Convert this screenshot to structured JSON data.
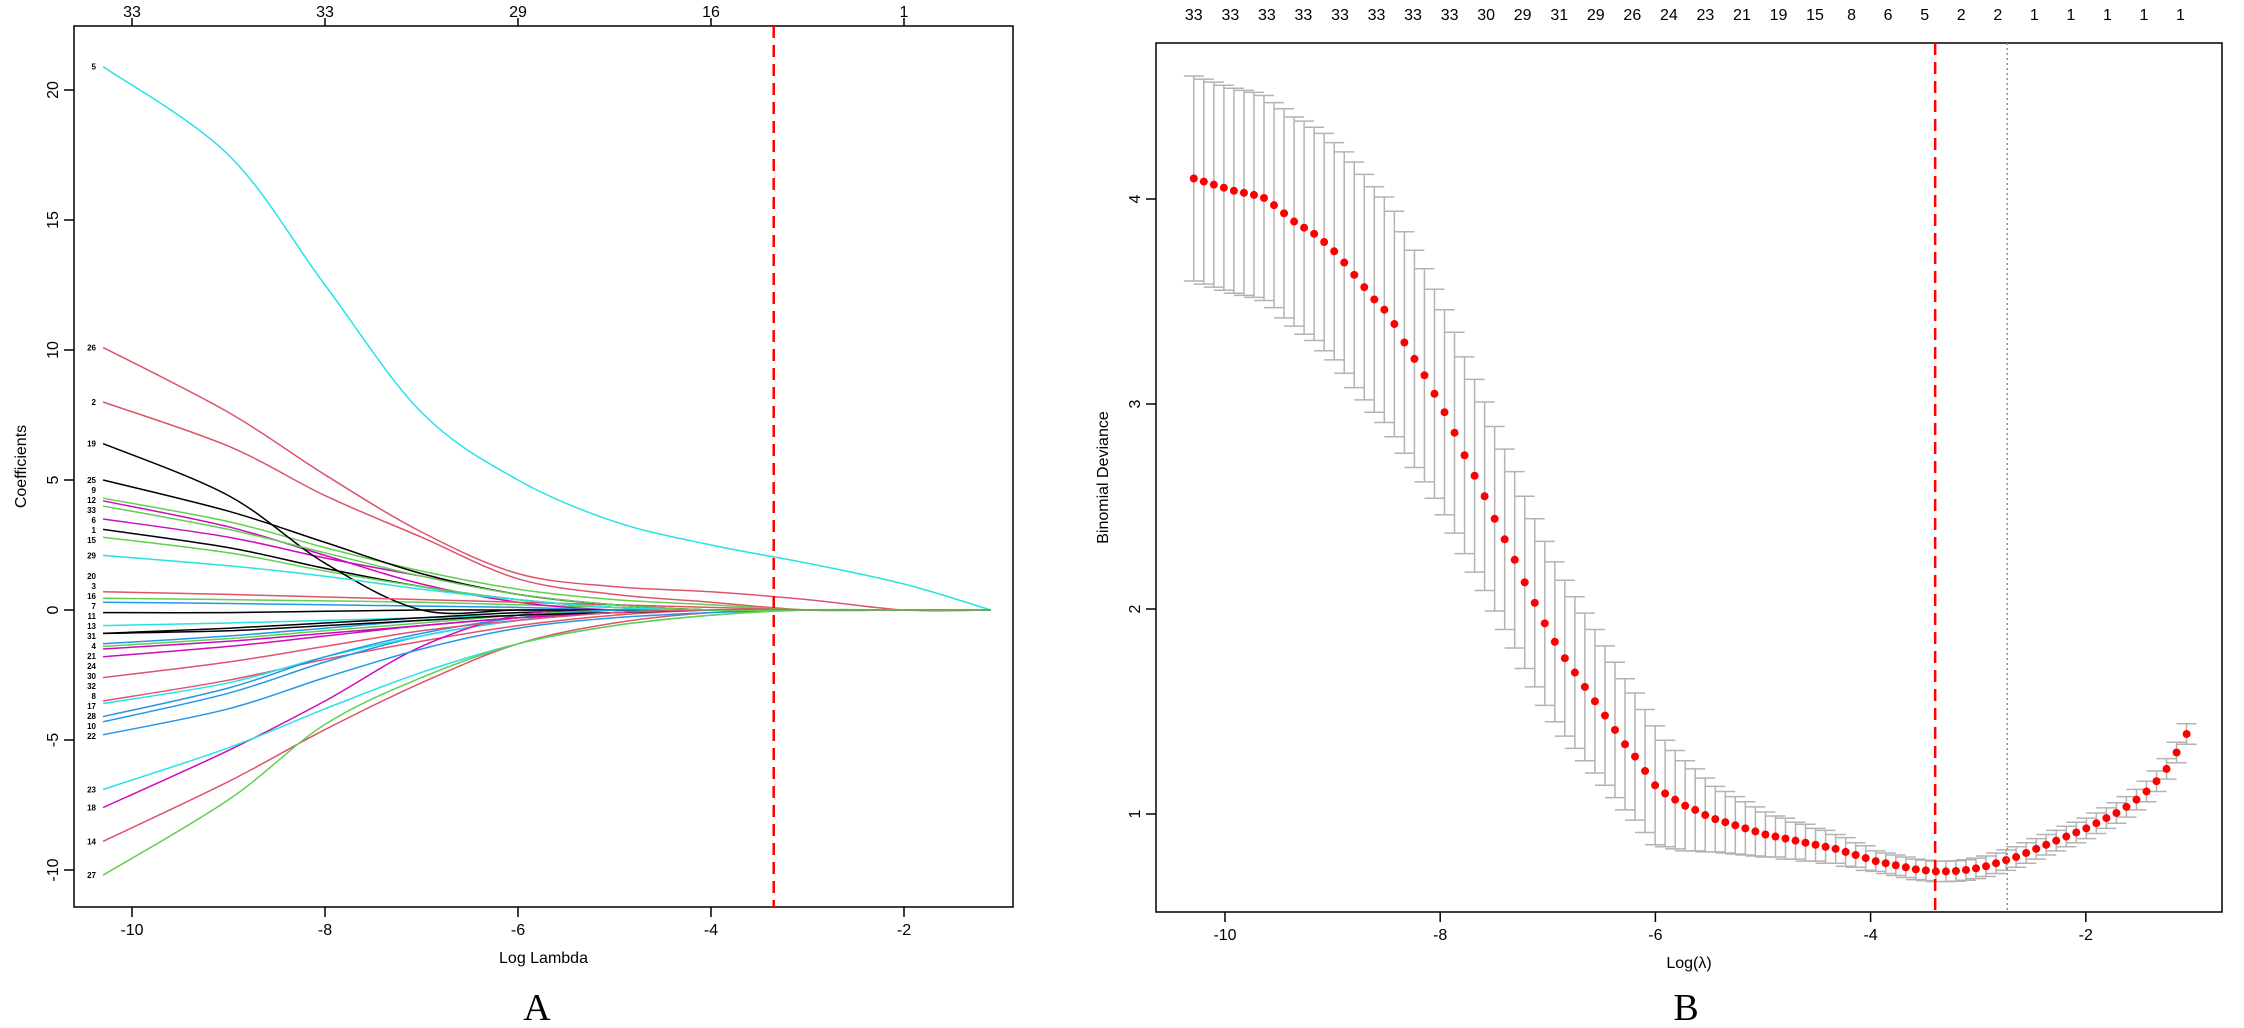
{
  "chart_data": [
    {
      "panel_label": "A",
      "type": "line",
      "title": "",
      "xlabel": "Log Lambda",
      "ylabel": "Coefficients",
      "xlim": [
        -10.6,
        -0.9
      ],
      "ylim": [
        -10.8,
        22.1
      ],
      "xticks": [
        -10,
        -8,
        -6,
        -4,
        -2
      ],
      "yticks": [
        -10,
        -5,
        0,
        5,
        10,
        15,
        20
      ],
      "top_axis": {
        "ticks": [
          -10,
          -8,
          -6,
          -4,
          -2
        ],
        "labels": [
          "33",
          "33",
          "29",
          "16",
          "1"
        ]
      },
      "vline": {
        "x": -3.35,
        "color": "#FF0000",
        "style": "dashed"
      },
      "x_grid": [
        -10.3,
        -9,
        -8,
        -7,
        -6,
        -5,
        -4,
        -3,
        -2,
        -1.1
      ],
      "palette": [
        "#000000",
        "#DF536B",
        "#61D04F",
        "#2297E6",
        "#28E2E5",
        "#CD0BBC"
      ],
      "series": [
        {
          "name": "1",
          "values": [
            3.1,
            2.4,
            1.6,
            0.9,
            0.4,
            0.1,
            0,
            0,
            0,
            0
          ]
        },
        {
          "name": "2",
          "values": [
            8.0,
            6.3,
            4.4,
            2.8,
            1.2,
            0.6,
            0.3,
            0,
            0,
            0
          ]
        },
        {
          "name": "3",
          "values": [
            0.45,
            0.4,
            0.35,
            0.3,
            0.2,
            0.1,
            0,
            0,
            0,
            0
          ]
        },
        {
          "name": "4",
          "values": [
            -1.3,
            -1.0,
            -0.7,
            -0.4,
            -0.2,
            -0.1,
            0,
            0,
            0,
            0
          ]
        },
        {
          "name": "5",
          "values": [
            20.9,
            17.5,
            12.5,
            7.6,
            5.0,
            3.4,
            2.5,
            1.8,
            1.0,
            0
          ]
        },
        {
          "name": "6",
          "values": [
            3.5,
            2.8,
            2.0,
            1.3,
            0.6,
            0.2,
            0,
            0,
            0,
            0
          ]
        },
        {
          "name": "7",
          "values": [
            -0.1,
            -0.1,
            -0.05,
            0,
            0,
            0,
            0,
            0,
            0,
            0
          ]
        },
        {
          "name": "8",
          "values": [
            -3.5,
            -2.7,
            -1.9,
            -1.2,
            -0.6,
            -0.2,
            0,
            0,
            0,
            0
          ]
        },
        {
          "name": "9",
          "values": [
            4.3,
            3.4,
            2.4,
            1.5,
            0.8,
            0.4,
            0.2,
            0,
            0,
            0
          ]
        },
        {
          "name": "10",
          "values": [
            -4.3,
            -3.2,
            -2.0,
            -1.0,
            -0.4,
            0,
            0,
            0,
            0,
            0
          ]
        },
        {
          "name": "11",
          "values": [
            -0.6,
            -0.5,
            -0.4,
            -0.3,
            -0.2,
            0,
            0,
            0,
            0,
            0
          ]
        },
        {
          "name": "12",
          "values": [
            4.2,
            3.2,
            2.1,
            1.0,
            0.3,
            0,
            0,
            0,
            0,
            0
          ]
        },
        {
          "name": "13",
          "values": [
            -0.9,
            -0.7,
            -0.5,
            -0.3,
            -0.1,
            0,
            0,
            0,
            0,
            0
          ]
        },
        {
          "name": "14",
          "values": [
            -8.9,
            -6.6,
            -4.6,
            -2.8,
            -1.3,
            -0.5,
            -0.1,
            0,
            0,
            0
          ]
        },
        {
          "name": "15",
          "values": [
            2.8,
            2.2,
            1.5,
            0.9,
            0.4,
            0.1,
            0,
            0,
            0,
            0
          ]
        },
        {
          "name": "16",
          "values": [
            0.3,
            0.25,
            0.2,
            0.15,
            0.1,
            0,
            0,
            0,
            0,
            0
          ]
        },
        {
          "name": "17",
          "values": [
            -3.6,
            -2.8,
            -1.8,
            -1.0,
            -0.4,
            -0.1,
            0,
            0,
            0,
            0
          ]
        },
        {
          "name": "18",
          "values": [
            -7.6,
            -5.4,
            -3.5,
            -1.4,
            -0.2,
            0,
            0,
            0,
            0,
            0
          ]
        },
        {
          "name": "19",
          "values": [
            6.4,
            4.4,
            1.8,
            0,
            0,
            0,
            0,
            0,
            0,
            0
          ]
        },
        {
          "name": "20",
          "values": [
            0.7,
            0.6,
            0.5,
            0.4,
            0.3,
            0.2,
            0.1,
            0,
            0,
            0
          ]
        },
        {
          "name": "21",
          "values": [
            -1.4,
            -1.1,
            -0.8,
            -0.5,
            -0.2,
            0,
            0,
            0,
            0,
            0
          ]
        },
        {
          "name": "22",
          "values": [
            -4.8,
            -3.8,
            -2.6,
            -1.5,
            -0.7,
            -0.3,
            -0.1,
            0,
            0,
            0
          ]
        },
        {
          "name": "23",
          "values": [
            -6.9,
            -5.3,
            -3.8,
            -2.4,
            -1.3,
            -0.6,
            -0.2,
            0,
            0,
            0
          ]
        },
        {
          "name": "24",
          "values": [
            -1.5,
            -1.2,
            -0.9,
            -0.6,
            -0.3,
            -0.1,
            0,
            0,
            0,
            0
          ]
        },
        {
          "name": "25",
          "values": [
            5.0,
            3.8,
            2.6,
            1.4,
            0.6,
            0.2,
            0,
            0,
            0,
            0
          ]
        },
        {
          "name": "26",
          "values": [
            10.1,
            7.6,
            5.2,
            3.0,
            1.4,
            0.9,
            0.7,
            0.4,
            0,
            0
          ]
        },
        {
          "name": "27",
          "values": [
            -10.2,
            -7.3,
            -4.4,
            -2.6,
            -1.3,
            -0.6,
            -0.2,
            0,
            0,
            0
          ]
        },
        {
          "name": "28",
          "values": [
            -4.1,
            -3.0,
            -1.8,
            -0.9,
            -0.3,
            0,
            0,
            0,
            0,
            0
          ]
        },
        {
          "name": "29",
          "values": [
            2.1,
            1.7,
            1.3,
            0.8,
            0.4,
            0.1,
            0,
            0,
            0,
            0
          ]
        },
        {
          "name": "30",
          "values": [
            -1.8,
            -1.4,
            -1.0,
            -0.6,
            -0.3,
            -0.1,
            0,
            0,
            0,
            0
          ]
        },
        {
          "name": "31",
          "values": [
            -0.9,
            -0.8,
            -0.6,
            -0.4,
            -0.2,
            -0.1,
            0,
            0,
            0,
            0
          ]
        },
        {
          "name": "32",
          "values": [
            -2.6,
            -2.0,
            -1.4,
            -0.8,
            -0.4,
            -0.1,
            0,
            0,
            0,
            0
          ]
        },
        {
          "name": "33",
          "values": [
            4.0,
            3.1,
            2.2,
            1.3,
            0.6,
            0.2,
            0,
            0,
            0,
            0
          ]
        }
      ]
    },
    {
      "panel_label": "B",
      "type": "scatter",
      "title": "",
      "xlabel": "Log(λ)",
      "ylabel": "Binomial Deviance",
      "xlim": [
        -10.64,
        -0.74
      ],
      "ylim": [
        0.54,
        4.78
      ],
      "xticks": [
        -10,
        -8,
        -6,
        -4,
        -2
      ],
      "yticks": [
        1,
        2,
        3,
        4
      ],
      "point_color": "#FF0000",
      "errorbar_color": "#B3B3B3",
      "x_start": -10.29,
      "x_step": 0.0932,
      "mean": [
        4.1,
        4.085,
        4.07,
        4.055,
        4.04,
        4.03,
        4.02,
        4.005,
        3.97,
        3.93,
        3.89,
        3.86,
        3.83,
        3.79,
        3.745,
        3.69,
        3.63,
        3.57,
        3.51,
        3.46,
        3.39,
        3.3,
        3.22,
        3.14,
        3.05,
        2.96,
        2.86,
        2.75,
        2.65,
        2.55,
        2.44,
        2.34,
        2.24,
        2.13,
        2.03,
        1.93,
        1.84,
        1.76,
        1.69,
        1.62,
        1.55,
        1.48,
        1.41,
        1.34,
        1.28,
        1.21,
        1.14,
        1.1,
        1.07,
        1.04,
        1.02,
        0.995,
        0.975,
        0.96,
        0.945,
        0.93,
        0.915,
        0.9,
        0.89,
        0.88,
        0.87,
        0.86,
        0.85,
        0.84,
        0.83,
        0.815,
        0.8,
        0.785,
        0.77,
        0.76,
        0.75,
        0.74,
        0.73,
        0.725,
        0.72,
        0.72,
        0.722,
        0.727,
        0.735,
        0.745,
        0.76,
        0.775,
        0.79,
        0.81,
        0.83,
        0.85,
        0.87,
        0.89,
        0.91,
        0.93,
        0.955,
        0.98,
        1.005,
        1.035,
        1.07,
        1.11,
        1.16,
        1.22,
        1.3,
        1.39
      ],
      "se": [
        0.5,
        0.5,
        0.5,
        0.5,
        0.5,
        0.5,
        0.5,
        0.5,
        0.5,
        0.51,
        0.51,
        0.52,
        0.52,
        0.53,
        0.53,
        0.54,
        0.55,
        0.55,
        0.55,
        0.55,
        0.55,
        0.54,
        0.53,
        0.52,
        0.51,
        0.5,
        0.49,
        0.48,
        0.47,
        0.46,
        0.45,
        0.44,
        0.43,
        0.42,
        0.41,
        0.4,
        0.39,
        0.38,
        0.37,
        0.36,
        0.35,
        0.34,
        0.33,
        0.32,
        0.31,
        0.3,
        0.29,
        0.26,
        0.24,
        0.22,
        0.2,
        0.18,
        0.16,
        0.15,
        0.14,
        0.13,
        0.12,
        0.11,
        0.1,
        0.1,
        0.09,
        0.09,
        0.08,
        0.08,
        0.07,
        0.07,
        0.06,
        0.06,
        0.05,
        0.05,
        0.05,
        0.05,
        0.05,
        0.05,
        0.05,
        0.05,
        0.05,
        0.05,
        0.05,
        0.05,
        0.05,
        0.05,
        0.05,
        0.05,
        0.05,
        0.05,
        0.05,
        0.05,
        0.05,
        0.05,
        0.05,
        0.05,
        0.05,
        0.05,
        0.05,
        0.05,
        0.05,
        0.05,
        0.05,
        0.05
      ],
      "top_axis": {
        "x_first": -10.29,
        "x_last": -1.12,
        "labels": [
          "33",
          "33",
          "33",
          "33",
          "33",
          "33",
          "33",
          "33",
          "30",
          "29",
          "31",
          "29",
          "26",
          "24",
          "23",
          "21",
          "19",
          "15",
          "8",
          "6",
          "5",
          "2",
          "2",
          "1",
          "1",
          "1",
          "1",
          "1"
        ]
      },
      "vlines": [
        {
          "x": -3.4,
          "color": "#FF0000",
          "style": "dashed"
        },
        {
          "x": -2.73,
          "color": "#808080",
          "style": "dotted"
        }
      ]
    }
  ]
}
